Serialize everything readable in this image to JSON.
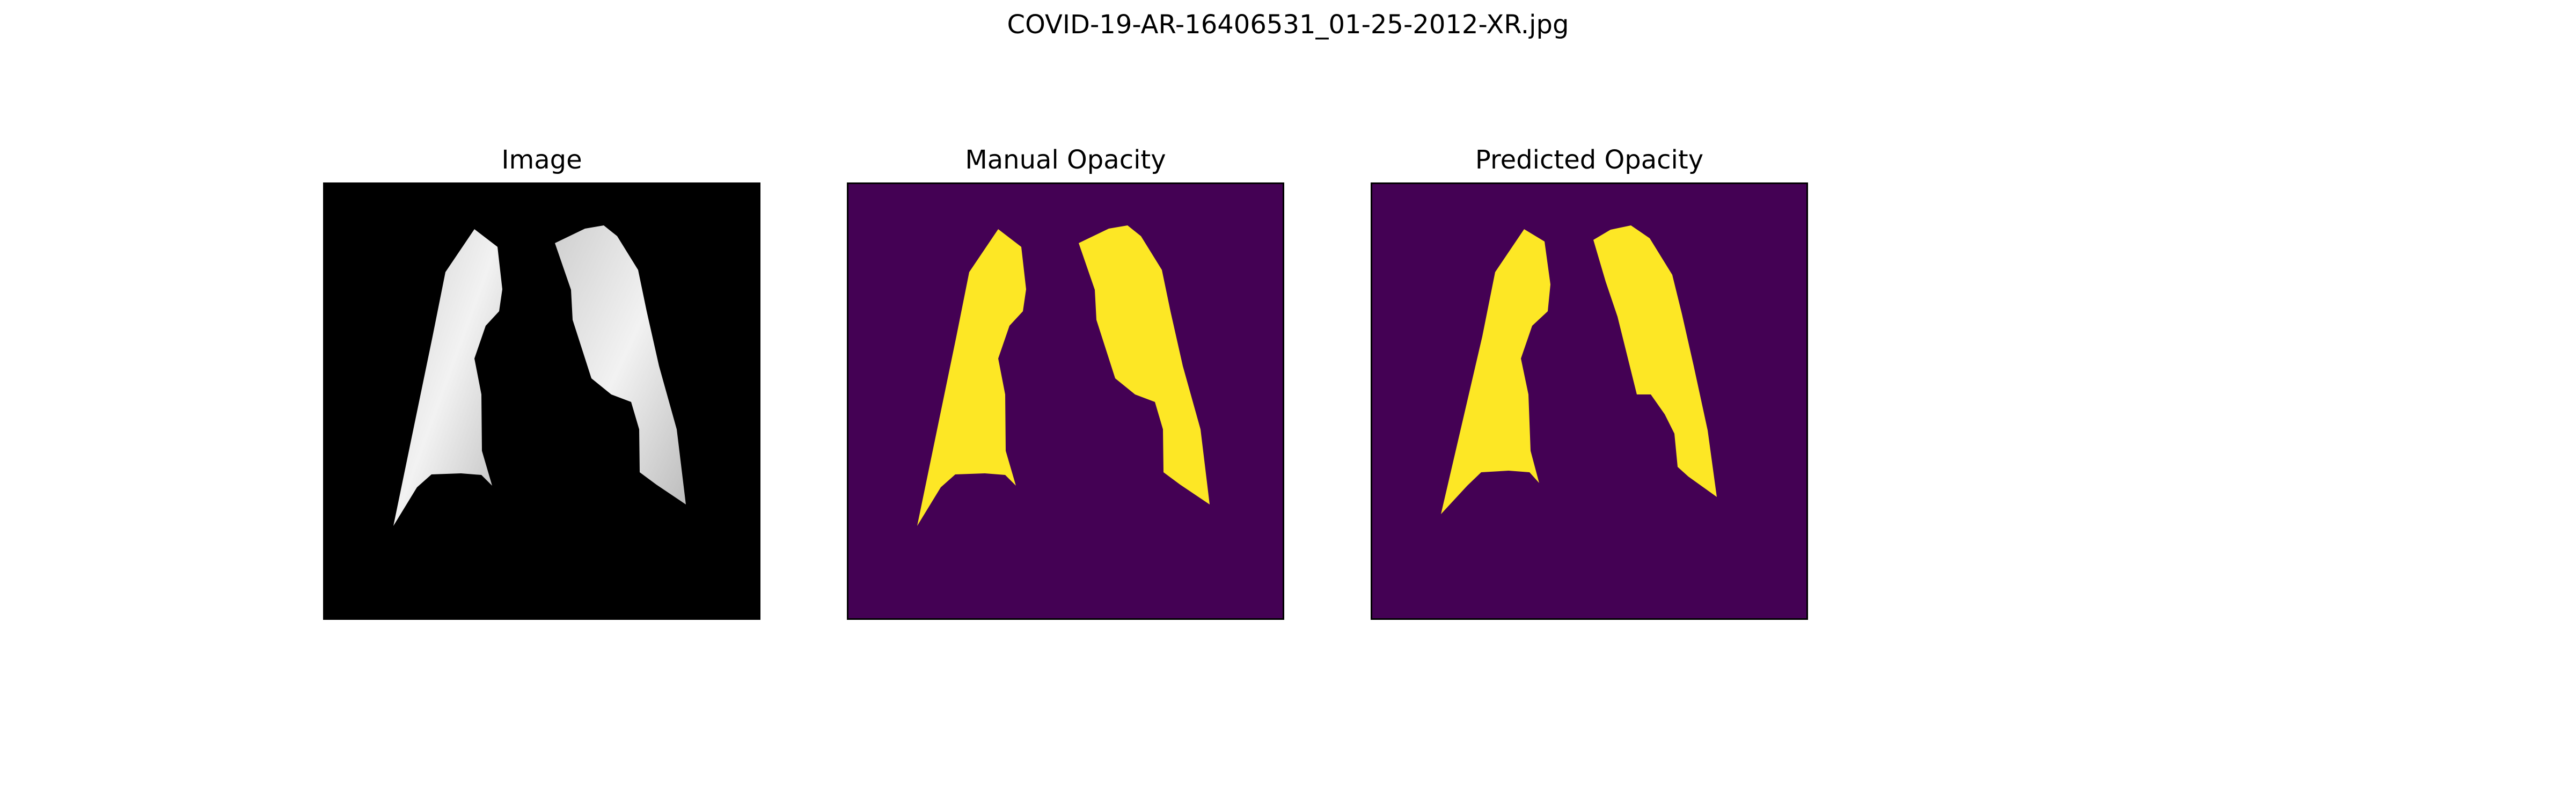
{
  "figure": {
    "title": "COVID-19-AR-16406531_01-25-2012-XR.jpg"
  },
  "panels": [
    {
      "title": "Image"
    },
    {
      "title": "Manual Opacity"
    },
    {
      "title": "Predicted Opacity"
    }
  ],
  "colors": {
    "background": "#ffffff",
    "xray_background": "#000000",
    "lung_xray_light": "#e6e6e6",
    "mask_background": "#440154",
    "mask_foreground": "#fde725",
    "axes_frame": "#000000"
  }
}
